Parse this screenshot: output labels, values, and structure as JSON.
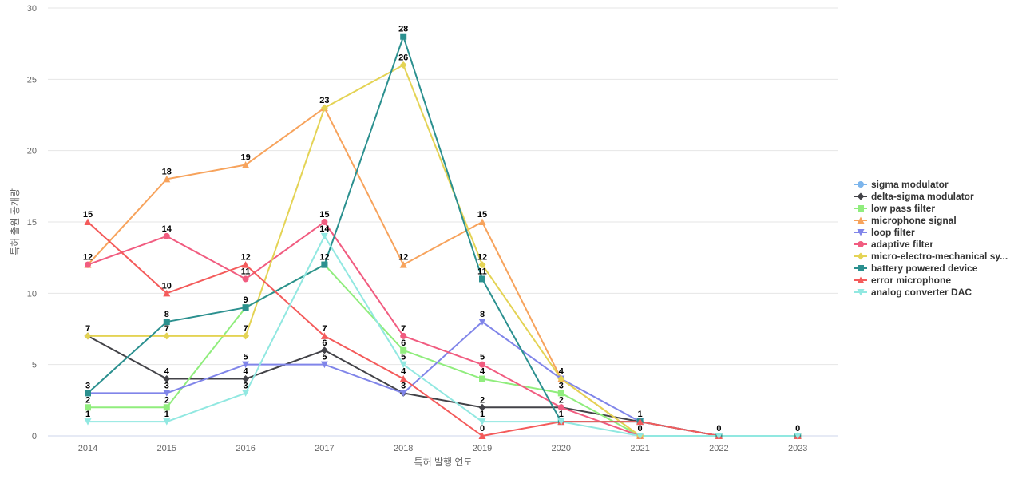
{
  "chart_data": {
    "type": "line",
    "xlabel": "특허 발행 연도",
    "ylabel": "특허 출원 공개량",
    "ylim": [
      0,
      30
    ],
    "yticks": [
      0,
      5,
      10,
      15,
      20,
      25,
      30
    ],
    "grid": true,
    "legend": "right",
    "x": [
      "2014",
      "2015",
      "2016",
      "2017",
      "2018",
      "2019",
      "2020",
      "2021",
      "2022",
      "2023"
    ],
    "series": [
      {
        "name": "sigma modulator",
        "color": "#7cb5ec",
        "marker": "circle",
        "values": [
          null,
          null,
          null,
          null,
          null,
          null,
          null,
          null,
          null,
          null
        ]
      },
      {
        "name": "delta-sigma modulator",
        "color": "#434348",
        "marker": "diamond",
        "values": [
          7,
          4,
          4,
          6,
          3,
          2,
          2,
          1,
          0,
          0
        ]
      },
      {
        "name": "low pass filter",
        "color": "#90ed7d",
        "marker": "square",
        "values": [
          2,
          2,
          9,
          12,
          6,
          4,
          3,
          0,
          0,
          0
        ]
      },
      {
        "name": "microphone signal",
        "color": "#f7a35c",
        "marker": "triangle",
        "values": [
          12,
          18,
          19,
          23,
          12,
          15,
          4,
          0,
          0,
          0
        ]
      },
      {
        "name": "loop filter",
        "color": "#8085e9",
        "marker": "triangle-down",
        "values": [
          3,
          3,
          5,
          5,
          3,
          8,
          4,
          1,
          0,
          0
        ]
      },
      {
        "name": "adaptive filter",
        "color": "#f15c80",
        "marker": "circle",
        "values": [
          12,
          14,
          11,
          15,
          7,
          5,
          2,
          0,
          0,
          0
        ]
      },
      {
        "name": "micro-electro-mechanical sy...",
        "color": "#e4d354",
        "marker": "diamond",
        "values": [
          7,
          7,
          7,
          23,
          26,
          12,
          4,
          0,
          0,
          0
        ]
      },
      {
        "name": "battery powered device",
        "color": "#2b908f",
        "marker": "square",
        "values": [
          3,
          8,
          9,
          12,
          28,
          11,
          1,
          1,
          0,
          0
        ]
      },
      {
        "name": "error microphone",
        "color": "#f45b5b",
        "marker": "triangle",
        "values": [
          15,
          10,
          12,
          7,
          4,
          0,
          1,
          1,
          0,
          0
        ]
      },
      {
        "name": "analog converter DAC",
        "color": "#91e8e1",
        "marker": "triangle-down",
        "values": [
          1,
          1,
          3,
          14,
          5,
          1,
          1,
          0,
          0,
          0
        ]
      }
    ],
    "labels": [
      {
        "x": "2014",
        "text": "15"
      },
      {
        "x": "2014",
        "text": "12"
      },
      {
        "x": "2014",
        "text": "7"
      },
      {
        "x": "2014",
        "text": "3"
      },
      {
        "x": "2014",
        "text": "2"
      },
      {
        "x": "2014",
        "text": "1"
      },
      {
        "x": "2015",
        "text": "18"
      },
      {
        "x": "2015",
        "text": "14"
      },
      {
        "x": "2015",
        "text": "10"
      },
      {
        "x": "2015",
        "text": "8"
      },
      {
        "x": "2015",
        "text": "7"
      },
      {
        "x": "2015",
        "text": "4"
      },
      {
        "x": "2015",
        "text": "3"
      },
      {
        "x": "2015",
        "text": "2"
      },
      {
        "x": "2015",
        "text": "1"
      },
      {
        "x": "2016",
        "text": "19"
      },
      {
        "x": "2016",
        "text": "12"
      },
      {
        "x": "2016",
        "text": "11"
      },
      {
        "x": "2016",
        "text": "9"
      },
      {
        "x": "2016",
        "text": "7"
      },
      {
        "x": "2016",
        "text": "5"
      },
      {
        "x": "2016",
        "text": "4"
      },
      {
        "x": "2016",
        "text": "3"
      },
      {
        "x": "2017",
        "text": "23"
      },
      {
        "x": "2017",
        "text": "15"
      },
      {
        "x": "2017",
        "text": "14"
      },
      {
        "x": "2017",
        "text": "12"
      },
      {
        "x": "2017",
        "text": "7"
      },
      {
        "x": "2017",
        "text": "6"
      },
      {
        "x": "2017",
        "text": "5"
      },
      {
        "x": "2018",
        "text": "28"
      },
      {
        "x": "2018",
        "text": "26"
      },
      {
        "x": "2018",
        "text": "12"
      },
      {
        "x": "2018",
        "text": "7"
      },
      {
        "x": "2018",
        "text": "6"
      },
      {
        "x": "2018",
        "text": "5"
      },
      {
        "x": "2018",
        "text": "4"
      },
      {
        "x": "2018",
        "text": "3"
      },
      {
        "x": "2019",
        "text": "15"
      },
      {
        "x": "2019",
        "text": "12"
      },
      {
        "x": "2019",
        "text": "11"
      },
      {
        "x": "2019",
        "text": "8"
      },
      {
        "x": "2019",
        "text": "5"
      },
      {
        "x": "2019",
        "text": "4"
      },
      {
        "x": "2019",
        "text": "2"
      },
      {
        "x": "2019",
        "text": "1"
      },
      {
        "x": "2019",
        "text": "0"
      },
      {
        "x": "2020",
        "text": "4"
      },
      {
        "x": "2020",
        "text": "3"
      },
      {
        "x": "2020",
        "text": "2"
      },
      {
        "x": "2020",
        "text": "1"
      },
      {
        "x": "2021",
        "text": "1"
      },
      {
        "x": "2021",
        "text": "0"
      },
      {
        "x": "2022",
        "text": "0"
      },
      {
        "x": "2023",
        "text": "0"
      }
    ]
  }
}
